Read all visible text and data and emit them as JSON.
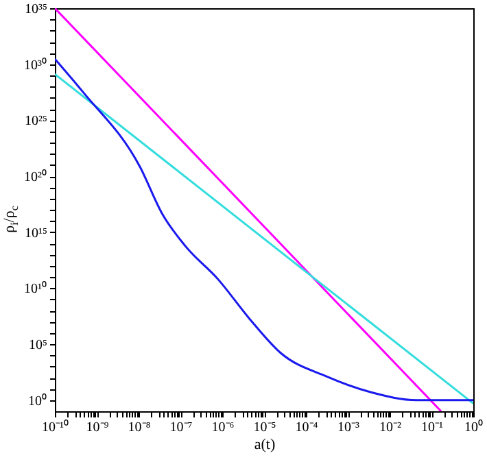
{
  "chart_data": {
    "type": "line",
    "xlabel": "a(t)",
    "ylabel": "ρ$_{i}$/ρ$_{c}$",
    "log": "xy",
    "grid": false,
    "xlim": [
      1e-10,
      1
    ],
    "ylim": [
      0.1,
      1e+35
    ],
    "xticks": [
      {
        "value": 1e-10,
        "label": "10⁻¹⁰"
      },
      {
        "value": 2e-10,
        "label": null
      },
      {
        "value": 3e-10,
        "label": null
      },
      {
        "value": 4e-10,
        "label": null
      },
      {
        "value": 5e-10,
        "label": null
      },
      {
        "value": 6e-10,
        "label": null
      },
      {
        "value": 7e-10,
        "label": null
      },
      {
        "value": 8e-10,
        "label": null
      },
      {
        "value": 9e-10,
        "label": null
      },
      {
        "value": 1e-09,
        "label": "10⁻⁹"
      },
      {
        "value": 2e-09,
        "label": null
      },
      {
        "value": 3e-09,
        "label": null
      },
      {
        "value": 4e-09,
        "label": null
      },
      {
        "value": 5e-09,
        "label": null
      },
      {
        "value": 6e-09,
        "label": null
      },
      {
        "value": 7e-09,
        "label": null
      },
      {
        "value": 8e-09,
        "label": null
      },
      {
        "value": 9e-09,
        "label": null
      },
      {
        "value": 1e-08,
        "label": "10⁻⁸"
      },
      {
        "value": 2e-08,
        "label": null
      },
      {
        "value": 3e-08,
        "label": null
      },
      {
        "value": 4e-08,
        "label": null
      },
      {
        "value": 5e-08,
        "label": null
      },
      {
        "value": 6e-08,
        "label": null
      },
      {
        "value": 7e-08,
        "label": null
      },
      {
        "value": 8e-08,
        "label": null
      },
      {
        "value": 9e-08,
        "label": null
      },
      {
        "value": 1e-07,
        "label": "10⁻⁷"
      },
      {
        "value": 2e-07,
        "label": null
      },
      {
        "value": 3e-07,
        "label": null
      },
      {
        "value": 4e-07,
        "label": null
      },
      {
        "value": 5e-07,
        "label": null
      },
      {
        "value": 6e-07,
        "label": null
      },
      {
        "value": 7e-07,
        "label": null
      },
      {
        "value": 8e-07,
        "label": null
      },
      {
        "value": 9e-07,
        "label": null
      },
      {
        "value": 1e-06,
        "label": "10⁻⁶"
      },
      {
        "value": 2e-06,
        "label": null
      },
      {
        "value": 3e-06,
        "label": null
      },
      {
        "value": 4e-06,
        "label": null
      },
      {
        "value": 5e-06,
        "label": null
      },
      {
        "value": 6e-06,
        "label": null
      },
      {
        "value": 7e-06,
        "label": null
      },
      {
        "value": 8e-06,
        "label": null
      },
      {
        "value": 9e-06,
        "label": null
      },
      {
        "value": 1e-05,
        "label": "10⁻⁵"
      },
      {
        "value": 2e-05,
        "label": null
      },
      {
        "value": 3e-05,
        "label": null
      },
      {
        "value": 4e-05,
        "label": null
      },
      {
        "value": 5e-05,
        "label": null
      },
      {
        "value": 6e-05,
        "label": null
      },
      {
        "value": 7e-05,
        "label": null
      },
      {
        "value": 8e-05,
        "label": null
      },
      {
        "value": 9e-05,
        "label": null
      },
      {
        "value": 0.0001,
        "label": "10⁻⁴"
      },
      {
        "value": 0.0002,
        "label": null
      },
      {
        "value": 0.0003,
        "label": null
      },
      {
        "value": 0.0004,
        "label": null
      },
      {
        "value": 0.0005,
        "label": null
      },
      {
        "value": 0.0006,
        "label": null
      },
      {
        "value": 0.0007,
        "label": null
      },
      {
        "value": 0.0008,
        "label": null
      },
      {
        "value": 0.0009,
        "label": null
      },
      {
        "value": 0.001,
        "label": "10⁻³"
      },
      {
        "value": 0.002,
        "label": null
      },
      {
        "value": 0.003,
        "label": null
      },
      {
        "value": 0.004,
        "label": null
      },
      {
        "value": 0.005,
        "label": null
      },
      {
        "value": 0.006,
        "label": null
      },
      {
        "value": 0.007,
        "label": null
      },
      {
        "value": 0.008,
        "label": null
      },
      {
        "value": 0.009,
        "label": null
      },
      {
        "value": 0.01,
        "label": "10⁻²"
      },
      {
        "value": 0.02,
        "label": null
      },
      {
        "value": 0.03,
        "label": null
      },
      {
        "value": 0.04,
        "label": null
      },
      {
        "value": 0.05,
        "label": null
      },
      {
        "value": 0.06,
        "label": null
      },
      {
        "value": 0.07,
        "label": null
      },
      {
        "value": 0.08,
        "label": null
      },
      {
        "value": 0.09,
        "label": null
      },
      {
        "value": 0.1,
        "label": "10⁻¹"
      },
      {
        "value": 0.2,
        "label": null
      },
      {
        "value": 0.3,
        "label": null
      },
      {
        "value": 0.4,
        "label": null
      },
      {
        "value": 0.5,
        "label": null
      },
      {
        "value": 0.6,
        "label": null
      },
      {
        "value": 0.7,
        "label": null
      },
      {
        "value": 0.8,
        "label": null
      },
      {
        "value": 0.9,
        "label": null
      },
      {
        "value": 1,
        "label": "10⁰"
      }
    ],
    "yticks": [
      {
        "value": 1,
        "label": "10⁰"
      },
      {
        "value": 10,
        "label": null
      },
      {
        "value": 100,
        "label": null
      },
      {
        "value": 1000.0,
        "label": null
      },
      {
        "value": 10000.0,
        "label": null
      },
      {
        "value": 100000.0,
        "label": "10⁵"
      },
      {
        "value": 1000000.0,
        "label": null
      },
      {
        "value": 10000000.0,
        "label": null
      },
      {
        "value": 100000000.0,
        "label": null
      },
      {
        "value": 1000000000.0,
        "label": null
      },
      {
        "value": 10000000000.0,
        "label": "10¹⁰"
      },
      {
        "value": 100000000000.0,
        "label": null
      },
      {
        "value": 1000000000000.0,
        "label": null
      },
      {
        "value": 10000000000000.0,
        "label": null
      },
      {
        "value": 100000000000000.0,
        "label": null
      },
      {
        "value": 1000000000000000.0,
        "label": "10¹⁵"
      },
      {
        "value": 1e+16,
        "label": null
      },
      {
        "value": 1e+17,
        "label": null
      },
      {
        "value": 1e+18,
        "label": null
      },
      {
        "value": 1e+19,
        "label": null
      },
      {
        "value": 1e+20,
        "label": "10²⁰"
      },
      {
        "value": 1e+21,
        "label": null
      },
      {
        "value": 1e+22,
        "label": null
      },
      {
        "value": 1e+23,
        "label": null
      },
      {
        "value": 1e+24,
        "label": null
      },
      {
        "value": 1e+25,
        "label": "10²⁵"
      },
      {
        "value": 1e+26,
        "label": null
      },
      {
        "value": 1e+27,
        "label": null
      },
      {
        "value": 1e+28,
        "label": null
      },
      {
        "value": 1e+29,
        "label": null
      },
      {
        "value": 1e+30,
        "label": "10³⁰"
      },
      {
        "value": 1e+31,
        "label": null
      },
      {
        "value": 1e+32,
        "label": null
      },
      {
        "value": 1e+33,
        "label": null
      },
      {
        "value": 1e+34,
        "label": null
      },
      {
        "value": 1e+35,
        "label": "10³⁵"
      }
    ],
    "series": [
      {
        "color": "#ff00ff",
        "x": [
          1e-10,
          0.17
        ],
        "values": [
          1e+35,
          0.1
        ]
      },
      {
        "color": "#33dddd",
        "x": [
          1e-10,
          1
        ],
        "values": [
          1.3e+29,
          0.5
        ]
      },
      {
        "color": "#1a1aee",
        "x": [
          1e-10,
          4.8e-10,
          1.1e-08,
          3.6e-08,
          1.3e-07,
          8e-07,
          4.4e-06,
          2.5e-05,
          0.00031,
          0.0036,
          0.044,
          1
        ],
        "values": [
          3e+30,
          3e+27,
          6e+20,
          5e+16,
          60000000000000.0,
          60000000000.0,
          20000000.0,
          16000.0,
          130,
          5,
          1,
          1
        ]
      }
    ]
  }
}
